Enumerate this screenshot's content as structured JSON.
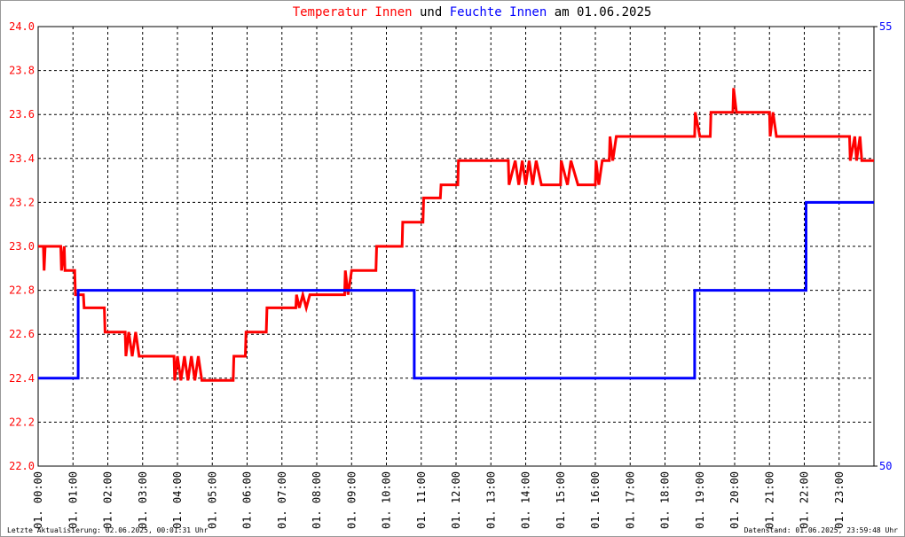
{
  "chart_data": {
    "type": "line",
    "title": {
      "connector": "und",
      "suffix": "am 01.06.2025"
    },
    "footer_left": "Letzte Aktualisierung: 02.06.2025, 00:01:31 Uhr",
    "footer_right": "Datenstand: 01.06.2025, 23:59:48 Uhr",
    "xlim": [
      0,
      24
    ],
    "xticks": [
      {
        "value": 0,
        "label": "01. 00:00"
      },
      {
        "value": 1,
        "label": "01. 01:00"
      },
      {
        "value": 2,
        "label": "01. 02:00"
      },
      {
        "value": 3,
        "label": "01. 03:00"
      },
      {
        "value": 4,
        "label": "01. 04:00"
      },
      {
        "value": 5,
        "label": "01. 05:00"
      },
      {
        "value": 6,
        "label": "01. 06:00"
      },
      {
        "value": 7,
        "label": "01. 07:00"
      },
      {
        "value": 8,
        "label": "01. 08:00"
      },
      {
        "value": 9,
        "label": "01. 09:00"
      },
      {
        "value": 10,
        "label": "01. 10:00"
      },
      {
        "value": 11,
        "label": "01. 11:00"
      },
      {
        "value": 12,
        "label": "01. 12:00"
      },
      {
        "value": 13,
        "label": "01. 13:00"
      },
      {
        "value": 14,
        "label": "01. 14:00"
      },
      {
        "value": 15,
        "label": "01. 15:00"
      },
      {
        "value": 16,
        "label": "01. 16:00"
      },
      {
        "value": 17,
        "label": "01. 17:00"
      },
      {
        "value": 18,
        "label": "01. 18:00"
      },
      {
        "value": 19,
        "label": "01. 19:00"
      },
      {
        "value": 20,
        "label": "01. 20:00"
      },
      {
        "value": 21,
        "label": "01. 21:00"
      },
      {
        "value": 22,
        "label": "01. 22:00"
      },
      {
        "value": 23,
        "label": "01. 23:00"
      }
    ],
    "ylim": [
      22.0,
      24.0
    ],
    "yticks": [
      {
        "value": 22,
        "label": "22.0"
      },
      22.2,
      22.4,
      22.6,
      22.8,
      {
        "value": 23,
        "label": "23.0"
      },
      23.2,
      23.4,
      23.6,
      23.8,
      {
        "value": 24,
        "label": "24.0"
      }
    ],
    "y2lim": [
      50,
      55
    ],
    "y2ticks": [
      50,
      55
    ],
    "grid": true,
    "series": [
      {
        "name": "Temperatur Innen",
        "color": "#ff0000",
        "x": [
          0,
          0.15,
          0.17,
          0.2,
          0.65,
          0.67,
          0.75,
          0.77,
          1.05,
          1.07,
          1.3,
          1.32,
          1.9,
          1.92,
          2.5,
          2.52,
          2.6,
          2.7,
          2.8,
          2.9,
          3.9,
          3.92,
          4.0,
          4.1,
          4.2,
          4.3,
          4.4,
          4.5,
          4.6,
          4.7,
          5.6,
          5.62,
          5.95,
          5.97,
          6.55,
          6.57,
          7.4,
          7.42,
          7.5,
          7.6,
          7.7,
          7.8,
          8.8,
          8.82,
          8.9,
          9.0,
          9.7,
          9.72,
          10.45,
          10.47,
          11.05,
          11.07,
          11.55,
          11.57,
          12.05,
          12.07,
          13.5,
          13.52,
          13.7,
          13.8,
          13.9,
          14.0,
          14.1,
          14.2,
          14.3,
          14.45,
          15.0,
          15.02,
          15.2,
          15.3,
          15.5,
          16.0,
          16.02,
          16.1,
          16.2,
          16.4,
          16.42,
          16.5,
          16.6,
          18.85,
          18.87,
          19.0,
          19.3,
          19.32,
          19.95,
          19.97,
          20.05,
          21.0,
          21.02,
          21.1,
          21.2,
          23.3,
          23.32,
          23.45,
          23.5,
          23.6,
          23.65,
          24
        ],
        "values": [
          23.0,
          23.0,
          22.89,
          23.0,
          23.0,
          22.89,
          23.0,
          22.89,
          22.89,
          22.78,
          22.78,
          22.72,
          22.72,
          22.61,
          22.61,
          22.5,
          22.61,
          22.5,
          22.61,
          22.5,
          22.5,
          22.39,
          22.5,
          22.39,
          22.5,
          22.39,
          22.5,
          22.39,
          22.5,
          22.39,
          22.39,
          22.5,
          22.5,
          22.61,
          22.61,
          22.72,
          22.72,
          22.78,
          22.72,
          22.78,
          22.72,
          22.78,
          22.78,
          22.89,
          22.78,
          22.89,
          22.89,
          23.0,
          23.0,
          23.11,
          23.11,
          23.22,
          23.22,
          23.28,
          23.28,
          23.39,
          23.39,
          23.28,
          23.39,
          23.28,
          23.39,
          23.28,
          23.39,
          23.28,
          23.39,
          23.28,
          23.28,
          23.39,
          23.28,
          23.39,
          23.28,
          23.28,
          23.39,
          23.28,
          23.39,
          23.39,
          23.5,
          23.39,
          23.5,
          23.5,
          23.61,
          23.5,
          23.5,
          23.61,
          23.61,
          23.72,
          23.61,
          23.61,
          23.5,
          23.61,
          23.5,
          23.5,
          23.39,
          23.5,
          23.39,
          23.5,
          23.39,
          23.39
        ]
      },
      {
        "name": "Feuchte Innen",
        "color": "#0000ff",
        "axis": "y2",
        "x": [
          0,
          1.15,
          1.15,
          10.8,
          10.8,
          18.85,
          18.85,
          22.05,
          22.05,
          24
        ],
        "values": [
          51,
          51,
          52,
          52,
          51,
          51,
          52,
          52,
          53,
          53
        ]
      }
    ]
  }
}
